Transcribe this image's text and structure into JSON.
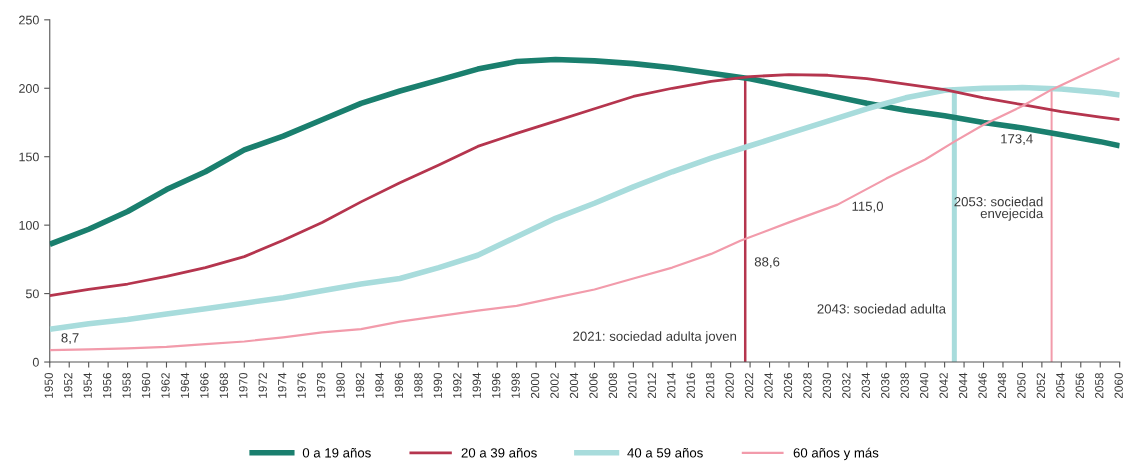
{
  "chart_data": {
    "type": "line",
    "x": [
      1950,
      1954,
      1958,
      1962,
      1966,
      1970,
      1974,
      1978,
      1982,
      1986,
      1990,
      1994,
      1998,
      2002,
      2006,
      2010,
      2014,
      2018,
      2022,
      2026,
      2030,
      2034,
      2038,
      2042,
      2046,
      2050,
      2054,
      2058,
      2060
    ],
    "series": [
      {
        "name": "0 a 19 años",
        "color": "#1a7f6e",
        "values": [
          86,
          97,
          110,
          126,
          139,
          155,
          165,
          177,
          189,
          198,
          206,
          214,
          219.5,
          221,
          220,
          218,
          215,
          211,
          207,
          201,
          195,
          189,
          184,
          180,
          175,
          171,
          166,
          161,
          158
        ]
      },
      {
        "name": "20 a 39 años",
        "color": "#b5354e",
        "values": [
          48.5,
          53,
          57,
          62.5,
          69,
          77,
          89,
          102,
          117,
          131,
          144,
          157.5,
          167,
          176,
          185,
          194,
          200,
          205,
          208.5,
          210,
          209.5,
          207,
          203,
          199,
          193,
          188,
          183,
          179,
          177
        ]
      },
      {
        "name": "40 a 59 años",
        "color": "#a8dcdc",
        "values": [
          24,
          28,
          31,
          35,
          39,
          43,
          47,
          52,
          57,
          61,
          69,
          78,
          91.5,
          105,
          116,
          128,
          139,
          149,
          158,
          167,
          176,
          185,
          193,
          198.5,
          200,
          200.5,
          199.5,
          197,
          195
        ]
      },
      {
        "name": "60 años y más",
        "color": "#f29bab",
        "x": [
          1950,
          1954,
          1958,
          1962,
          1966,
          1970,
          1974,
          1978,
          1982,
          1986,
          1990,
          1994,
          1998,
          2002,
          2006,
          2010,
          2014,
          2018,
          2021,
          2026,
          2031,
          2036,
          2040,
          2043,
          2046,
          2050,
          2053,
          2056,
          2060
        ],
        "values": [
          8.7,
          9.3,
          10,
          11,
          13,
          15,
          18,
          21.6,
          24,
          29.5,
          33.5,
          37.5,
          41,
          47,
          53,
          61,
          69,
          79,
          88.6,
          102,
          115,
          134,
          148,
          161,
          173.4,
          187,
          199,
          209,
          222
        ]
      }
    ],
    "xlim": [
      1950,
      2060
    ],
    "xticks": [
      1950,
      1952,
      1954,
      1956,
      1958,
      1960,
      1962,
      1964,
      1966,
      1968,
      1970,
      1972,
      1974,
      1976,
      1978,
      1980,
      1982,
      1984,
      1986,
      1988,
      1990,
      1992,
      1994,
      1996,
      1998,
      2000,
      2002,
      2004,
      2006,
      2008,
      2010,
      2012,
      2014,
      2016,
      2018,
      2020,
      2022,
      2024,
      2026,
      2028,
      2030,
      2032,
      2034,
      2036,
      2038,
      2040,
      2042,
      2044,
      2046,
      2048,
      2050,
      2052,
      2054,
      2056,
      2058,
      2060
    ],
    "ylim": [
      0,
      250
    ],
    "yticks": [
      0,
      50,
      100,
      150,
      200,
      250
    ],
    "ref_lines": [
      {
        "axis": "x",
        "value": 2021.5,
        "label": "2021: sociedad adulta joven",
        "color": "#b5354e"
      },
      {
        "axis": "x",
        "value": 2043,
        "label": "2043: sociedad adulta",
        "color": "#a8dcdc"
      },
      {
        "axis": "x",
        "value": 2053,
        "label": "2053: sociedad\nenvejecida",
        "color": "#f29bab"
      }
    ],
    "annotations": [
      {
        "text": "8,7",
        "x": 1950,
        "y": 8.7
      },
      {
        "text": "88,6",
        "x": 2021,
        "y": 88.6
      },
      {
        "text": "115,0",
        "x": 2031,
        "y": 115
      },
      {
        "text": "173,4",
        "x": 2046,
        "y": 173.4
      }
    ],
    "grid": false,
    "legend": "bottom",
    "marker": "none",
    "line_style": "solid"
  }
}
